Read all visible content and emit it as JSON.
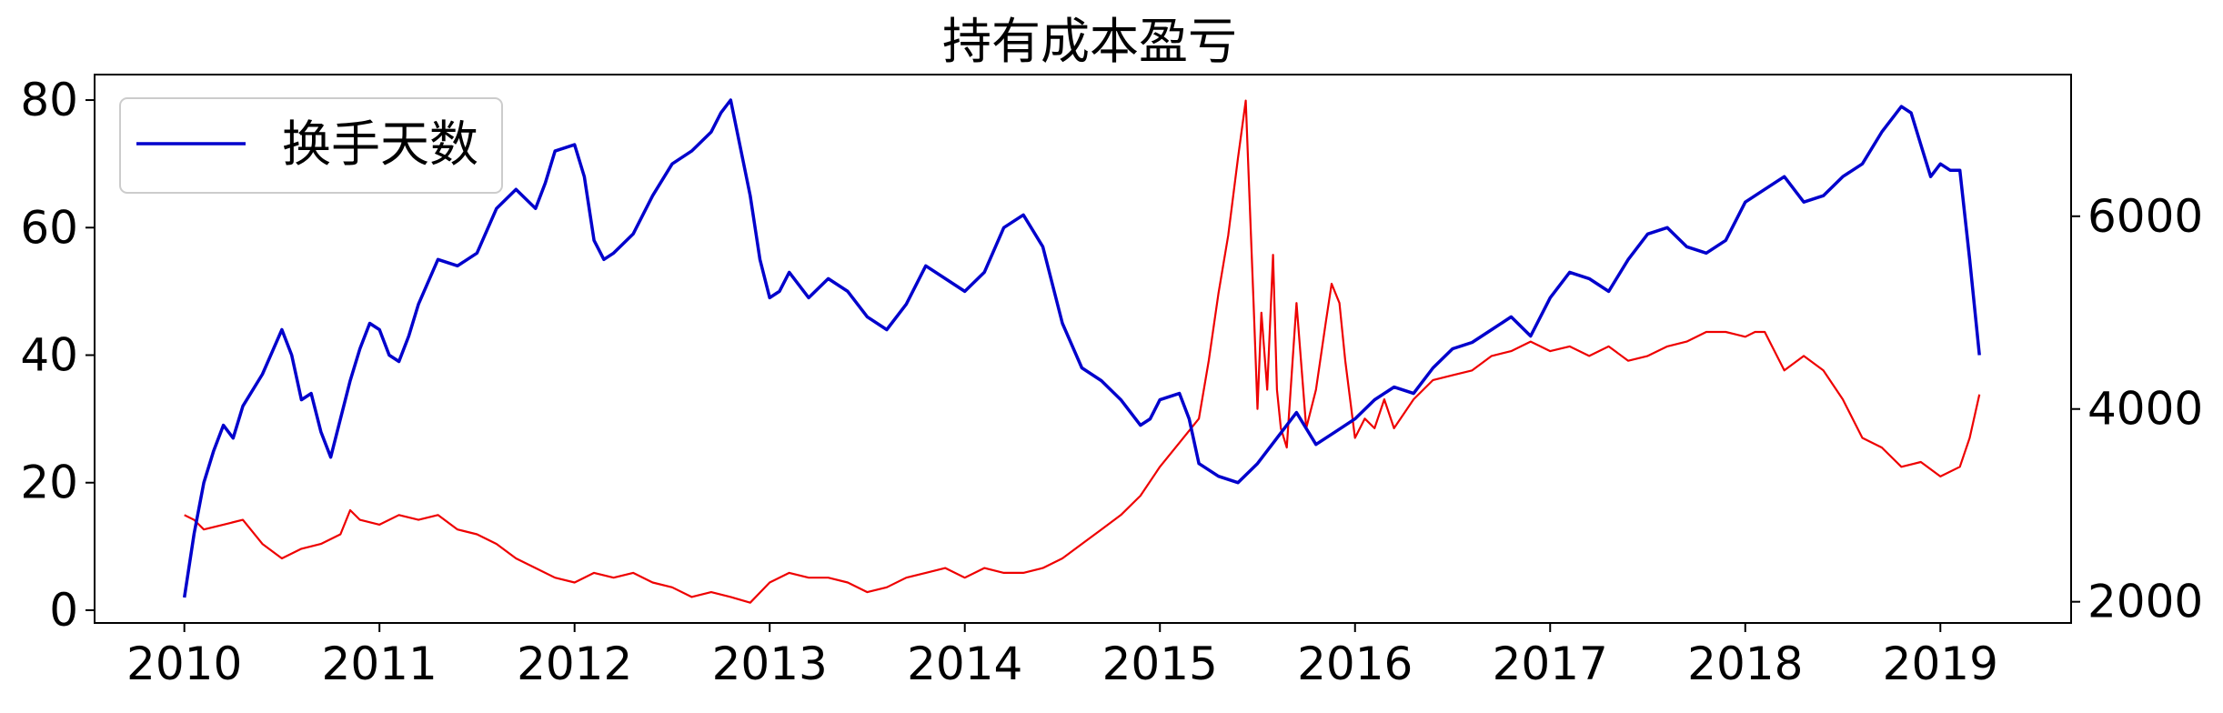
{
  "chart_data": {
    "type": "line",
    "title": "持有成本盈亏",
    "xlabel": "",
    "ylabel_left": "",
    "ylabel_right": "",
    "x_ticks": [
      "2010",
      "2011",
      "2012",
      "2013",
      "2014",
      "2015",
      "2016",
      "2017",
      "2018",
      "2019"
    ],
    "y_left_ticks": [
      "0",
      "20",
      "40",
      "60",
      "80"
    ],
    "y_right_ticks": [
      "2000",
      "4000",
      "6000"
    ],
    "xlim": [
      2009.54,
      2019.67
    ],
    "ylim_left": [
      -2,
      84
    ],
    "ylim_right": [
      1780,
      7470
    ],
    "grid": false,
    "legend": {
      "placement": "upper-left",
      "entries": [
        "换手天数"
      ]
    },
    "series": [
      {
        "name": "换手天数",
        "axis": "left",
        "color": "#0000cc",
        "x": [
          2010.0,
          2010.05,
          2010.1,
          2010.15,
          2010.2,
          2010.25,
          2010.3,
          2010.4,
          2010.5,
          2010.55,
          2010.6,
          2010.65,
          2010.7,
          2010.75,
          2010.8,
          2010.85,
          2010.9,
          2010.95,
          2011.0,
          2011.05,
          2011.1,
          2011.15,
          2011.2,
          2011.3,
          2011.4,
          2011.5,
          2011.6,
          2011.7,
          2011.8,
          2011.85,
          2011.9,
          2012.0,
          2012.05,
          2012.1,
          2012.15,
          2012.2,
          2012.3,
          2012.4,
          2012.5,
          2012.6,
          2012.7,
          2012.75,
          2012.8,
          2012.9,
          2012.95,
          2013.0,
          2013.05,
          2013.1,
          2013.2,
          2013.3,
          2013.4,
          2013.5,
          2013.6,
          2013.7,
          2013.8,
          2013.9,
          2014.0,
          2014.1,
          2014.2,
          2014.3,
          2014.4,
          2014.5,
          2014.6,
          2014.7,
          2014.8,
          2014.9,
          2014.95,
          2015.0,
          2015.1,
          2015.15,
          2015.2,
          2015.3,
          2015.4,
          2015.5,
          2015.6,
          2015.7,
          2015.8,
          2015.9,
          2016.0,
          2016.1,
          2016.2,
          2016.3,
          2016.4,
          2016.5,
          2016.6,
          2016.7,
          2016.8,
          2016.9,
          2017.0,
          2017.1,
          2017.2,
          2017.3,
          2017.4,
          2017.5,
          2017.6,
          2017.7,
          2017.8,
          2017.9,
          2018.0,
          2018.1,
          2018.2,
          2018.3,
          2018.4,
          2018.5,
          2018.6,
          2018.7,
          2018.8,
          2018.85,
          2018.9,
          2018.95,
          2019.0,
          2019.05,
          2019.1,
          2019.15,
          2019.2
        ],
        "values": [
          2,
          12,
          20,
          25,
          29,
          27,
          32,
          37,
          44,
          40,
          33,
          34,
          28,
          24,
          30,
          36,
          41,
          45,
          44,
          40,
          39,
          43,
          48,
          55,
          54,
          56,
          63,
          66,
          63,
          67,
          72,
          73,
          68,
          58,
          55,
          56,
          59,
          65,
          70,
          72,
          75,
          78,
          80,
          65,
          55,
          49,
          50,
          53,
          49,
          52,
          50,
          46,
          44,
          48,
          54,
          52,
          50,
          53,
          60,
          62,
          57,
          45,
          38,
          36,
          33,
          29,
          30,
          33,
          34,
          30,
          23,
          21,
          20,
          23,
          27,
          31,
          26,
          28,
          30,
          33,
          35,
          34,
          38,
          41,
          42,
          44,
          46,
          43,
          49,
          53,
          52,
          50,
          55,
          59,
          60,
          57,
          56,
          58,
          64,
          66,
          68,
          64,
          65,
          68,
          70,
          75,
          79,
          78,
          73,
          68,
          70,
          69,
          69,
          55,
          40
        ]
      },
      {
        "name": "",
        "axis": "right",
        "color": "#ee0000",
        "x": [
          2010.0,
          2010.05,
          2010.1,
          2010.2,
          2010.3,
          2010.4,
          2010.5,
          2010.6,
          2010.7,
          2010.8,
          2010.85,
          2010.9,
          2011.0,
          2011.1,
          2011.2,
          2011.3,
          2011.4,
          2011.5,
          2011.6,
          2011.7,
          2011.8,
          2011.9,
          2012.0,
          2012.1,
          2012.2,
          2012.3,
          2012.4,
          2012.5,
          2012.6,
          2012.7,
          2012.8,
          2012.9,
          2013.0,
          2013.1,
          2013.2,
          2013.3,
          2013.4,
          2013.5,
          2013.6,
          2013.7,
          2013.8,
          2013.9,
          2014.0,
          2014.1,
          2014.2,
          2014.3,
          2014.4,
          2014.5,
          2014.6,
          2014.7,
          2014.8,
          2014.9,
          2015.0,
          2015.1,
          2015.2,
          2015.25,
          2015.3,
          2015.35,
          2015.4,
          2015.44,
          2015.48,
          2015.5,
          2015.52,
          2015.55,
          2015.58,
          2015.6,
          2015.62,
          2015.65,
          2015.68,
          2015.7,
          2015.75,
          2015.8,
          2015.85,
          2015.88,
          2015.92,
          2015.95,
          2016.0,
          2016.05,
          2016.1,
          2016.15,
          2016.2,
          2016.3,
          2016.4,
          2016.5,
          2016.6,
          2016.7,
          2016.8,
          2016.9,
          2017.0,
          2017.1,
          2017.2,
          2017.3,
          2017.4,
          2017.5,
          2017.6,
          2017.7,
          2017.8,
          2017.9,
          2018.0,
          2018.05,
          2018.1,
          2018.2,
          2018.3,
          2018.4,
          2018.5,
          2018.6,
          2018.7,
          2018.8,
          2018.9,
          2019.0,
          2019.1,
          2019.15,
          2019.2
        ],
        "values": [
          2900,
          2850,
          2750,
          2800,
          2850,
          2600,
          2450,
          2550,
          2600,
          2700,
          2950,
          2850,
          2800,
          2900,
          2850,
          2900,
          2750,
          2700,
          2600,
          2450,
          2350,
          2250,
          2200,
          2300,
          2250,
          2300,
          2200,
          2150,
          2050,
          2100,
          2050,
          1990,
          2200,
          2300,
          2250,
          2250,
          2200,
          2100,
          2150,
          2250,
          2300,
          2350,
          2250,
          2350,
          2300,
          2300,
          2350,
          2450,
          2600,
          2750,
          2900,
          3100,
          3400,
          3650,
          3900,
          4500,
          5200,
          5800,
          6600,
          7200,
          5100,
          4000,
          5000,
          4200,
          5600,
          4200,
          3800,
          3600,
          4500,
          5100,
          3800,
          4200,
          4900,
          5300,
          5100,
          4500,
          3700,
          3900,
          3800,
          4100,
          3800,
          4100,
          4300,
          4350,
          4400,
          4550,
          4600,
          4700,
          4600,
          4650,
          4550,
          4650,
          4500,
          4550,
          4650,
          4700,
          4800,
          4800,
          4750,
          4800,
          4800,
          4400,
          4550,
          4400,
          4100,
          3700,
          3600,
          3400,
          3450,
          3300,
          3400,
          3700,
          4150
        ]
      }
    ]
  }
}
